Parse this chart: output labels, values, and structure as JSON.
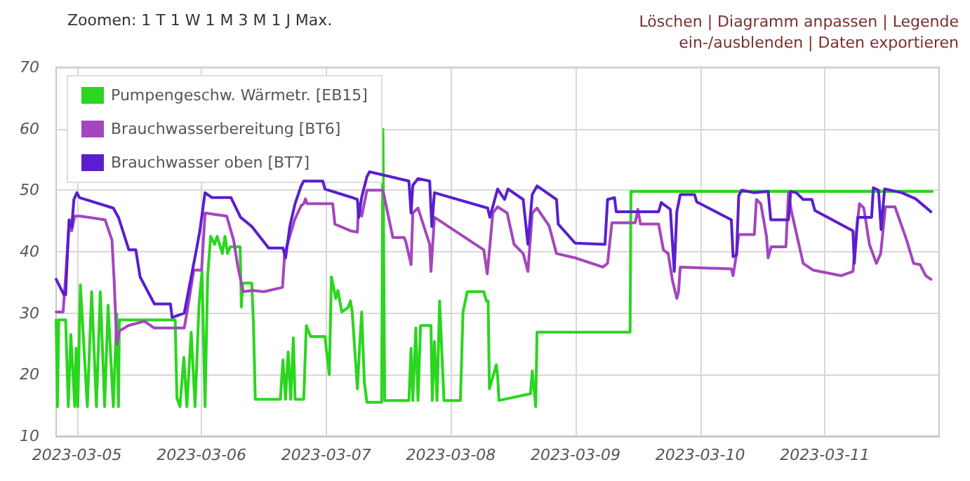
{
  "chart_data": {
    "type": "line",
    "annotations": [
      "Zoomen: 1 T 1 W 1 M 3 M 1 J Max.",
      "Löschen | Diagramm anpassen | Legende ein-/ausblenden | Daten exportieren"
    ],
    "xlim": [
      "2023-03-04T20:00",
      "2023-03-11T22:00"
    ],
    "xticks": [
      "2023-03-05",
      "2023-03-06",
      "2023-03-07",
      "2023-03-08",
      "2023-03-09",
      "2023-03-10",
      "2023-03-11"
    ],
    "ylim": [
      10,
      70
    ],
    "yticks": [
      10,
      20,
      30,
      40,
      50,
      60,
      70
    ],
    "grid": true,
    "legend": "top left",
    "line_style": "solid",
    "series": [
      {
        "name": "Pumpengeschw. Wärmetr. [EB15]",
        "color": "#2ad61e",
        "x": [
          "2023-03-04T20:00",
          "2023-03-04T20:15",
          "2023-03-04T20:30",
          "2023-03-04T21:50",
          "2023-03-04T22:20",
          "2023-03-04T22:50",
          "2023-03-04T23:35",
          "2023-03-04T23:50",
          "2023-03-05T00:10",
          "2023-03-05T00:40",
          "2023-03-05T02:00",
          "2023-03-05T02:50",
          "2023-03-05T03:45",
          "2023-03-05T04:30",
          "2023-03-05T05:20",
          "2023-03-05T06:00",
          "2023-03-05T07:00",
          "2023-03-05T07:40",
          "2023-03-05T08:00",
          "2023-03-05T08:10",
          "2023-03-05T18:55",
          "2023-03-05T19:15",
          "2023-03-05T19:50",
          "2023-03-05T20:35",
          "2023-03-05T21:10",
          "2023-03-05T22:00",
          "2023-03-05T22:45",
          "2023-03-05T23:30",
          "2023-03-06T00:05",
          "2023-03-06T00:40",
          "2023-03-06T01:10",
          "2023-03-06T01:45",
          "2023-03-06T02:30",
          "2023-03-06T03:00",
          "2023-03-06T04:00",
          "2023-03-06T04:30",
          "2023-03-06T05:00",
          "2023-03-06T05:30",
          "2023-03-06T07:25",
          "2023-03-06T07:40",
          "2023-03-06T07:55",
          "2023-03-06T09:40",
          "2023-03-06T10:00",
          "2023-03-06T10:20",
          "2023-03-06T15:10",
          "2023-03-06T15:40",
          "2023-03-06T16:10",
          "2023-03-06T16:40",
          "2023-03-06T17:10",
          "2023-03-06T17:40",
          "2023-03-06T18:00",
          "2023-03-06T19:40",
          "2023-03-06T20:10",
          "2023-03-06T21:00",
          "2023-03-06T23:45",
          "2023-03-07T00:35",
          "2023-03-07T01:00",
          "2023-03-07T01:50",
          "2023-03-07T02:15",
          "2023-03-07T03:00",
          "2023-03-07T04:10",
          "2023-03-07T04:40",
          "2023-03-07T05:00",
          "2023-03-07T06:00",
          "2023-03-07T06:25",
          "2023-03-07T06:50",
          "2023-03-07T07:20",
          "2023-03-07T07:50",
          "2023-03-07T10:40",
          "2023-03-07T10:55",
          "2023-03-07T11:15",
          "2023-03-07T15:55",
          "2023-03-07T16:20",
          "2023-03-07T16:40",
          "2023-03-07T17:15",
          "2023-03-07T17:40",
          "2023-03-07T18:10",
          "2023-03-07T20:10",
          "2023-03-07T20:25",
          "2023-03-07T20:50",
          "2023-03-07T21:20",
          "2023-03-07T21:50",
          "2023-03-07T22:40",
          "2023-03-08T01:50",
          "2023-03-08T02:20",
          "2023-03-08T03:10",
          "2023-03-08T06:20",
          "2023-03-08T06:50",
          "2023-03-08T07:10",
          "2023-03-08T07:25",
          "2023-03-08T08:45",
          "2023-03-08T09:00",
          "2023-03-08T09:15",
          "2023-03-08T15:20",
          "2023-03-08T15:40",
          "2023-03-08T16:20",
          "2023-03-08T16:35",
          "2023-03-09T10:30",
          "2023-03-09T10:40",
          "2023-03-11T20:40"
        ],
        "values": [
          28.9,
          14.8,
          28.9,
          28.9,
          14.8,
          26.5,
          14.8,
          24.3,
          14.8,
          34.6,
          14.8,
          33.5,
          14.8,
          33.5,
          14.8,
          31.3,
          14.8,
          29.9,
          14.8,
          28.9,
          28.9,
          16.2,
          14.8,
          22.8,
          14.8,
          26.9,
          14.8,
          31.3,
          36.8,
          14.8,
          36,
          42.5,
          41.2,
          42.5,
          39.7,
          42.5,
          39.7,
          40.8,
          40.8,
          31,
          34.9,
          34.9,
          28,
          16,
          16,
          22.4,
          16,
          23.7,
          16,
          26,
          16,
          16,
          28,
          26.2,
          26.2,
          20,
          35.9,
          32.4,
          33.7,
          30.2,
          30.9,
          32,
          30.2,
          17.7,
          24.3,
          30.2,
          18.8,
          15.5,
          15.5,
          59.9,
          15.8,
          15.8,
          24.3,
          15.8,
          27.6,
          15.8,
          28,
          28,
          15.8,
          25.4,
          15.8,
          32,
          15.8,
          15.8,
          30.2,
          33.5,
          33.5,
          32,
          32,
          17.7,
          21.6,
          19.8,
          15.8,
          16.9,
          20.6,
          14.8,
          26.9,
          26.9,
          49.8,
          49.8
        ]
      },
      {
        "name": "Brauchwasserbereitung [BT6]",
        "color": "#a446bd",
        "x": [
          "2023-03-04T20:00",
          "2023-03-04T21:20",
          "2023-03-04T21:50",
          "2023-03-04T22:30",
          "2023-03-04T23:00",
          "2023-03-04T23:35",
          "2023-03-05T00:40",
          "2023-03-05T05:25",
          "2023-03-05T06:45",
          "2023-03-05T07:10",
          "2023-03-05T07:40",
          "2023-03-05T08:10",
          "2023-03-05T09:55",
          "2023-03-05T13:00",
          "2023-03-05T14:50",
          "2023-03-05T20:40",
          "2023-03-05T21:10",
          "2023-03-05T22:30",
          "2023-03-06T00:00",
          "2023-03-06T00:40",
          "2023-03-06T04:50",
          "2023-03-06T06:10",
          "2023-03-06T07:00",
          "2023-03-06T08:00",
          "2023-03-06T09:50",
          "2023-03-06T12:00",
          "2023-03-06T15:35",
          "2023-03-06T16:00",
          "2023-03-06T17:55",
          "2023-03-06T19:10",
          "2023-03-06T19:40",
          "2023-03-06T20:00",
          "2023-03-06T20:20",
          "2023-03-07T01:15",
          "2023-03-07T01:40",
          "2023-03-07T04:40",
          "2023-03-07T06:00",
          "2023-03-07T06:15",
          "2023-03-07T06:50",
          "2023-03-07T07:50",
          "2023-03-07T10:55",
          "2023-03-07T12:50",
          "2023-03-07T15:00",
          "2023-03-07T15:20",
          "2023-03-07T16:20",
          "2023-03-07T16:40",
          "2023-03-07T17:40",
          "2023-03-07T19:55",
          "2023-03-07T20:10",
          "2023-03-07T20:50",
          "2023-03-08T06:20",
          "2023-03-08T07:00",
          "2023-03-08T08:05",
          "2023-03-08T09:00",
          "2023-03-08T10:50",
          "2023-03-08T12:10",
          "2023-03-08T13:55",
          "2023-03-08T14:50",
          "2023-03-08T15:40",
          "2023-03-08T16:35",
          "2023-03-08T18:55",
          "2023-03-08T20:20",
          "2023-03-08T23:55",
          "2023-03-09T05:15",
          "2023-03-09T06:10",
          "2023-03-09T07:00",
          "2023-03-09T11:30",
          "2023-03-09T12:00",
          "2023-03-09T12:30",
          "2023-03-09T16:00",
          "2023-03-09T16:55",
          "2023-03-09T17:50",
          "2023-03-09T18:40",
          "2023-03-09T19:30",
          "2023-03-09T19:50",
          "2023-03-09T20:10",
          "2023-03-10T06:00",
          "2023-03-10T06:20",
          "2023-03-10T07:00",
          "2023-03-10T07:25",
          "2023-03-10T10:25",
          "2023-03-10T10:50",
          "2023-03-10T11:40",
          "2023-03-10T12:45",
          "2023-03-10T13:05",
          "2023-03-10T13:40",
          "2023-03-10T16:30",
          "2023-03-10T17:00",
          "2023-03-10T17:35",
          "2023-03-10T19:50",
          "2023-03-10T21:45",
          "2023-03-11T03:10",
          "2023-03-11T05:25",
          "2023-03-11T06:00",
          "2023-03-11T06:40",
          "2023-03-11T07:30",
          "2023-03-11T08:35",
          "2023-03-11T09:55",
          "2023-03-11T10:45",
          "2023-03-11T11:40",
          "2023-03-11T13:30",
          "2023-03-11T15:45",
          "2023-03-11T17:05",
          "2023-03-11T18:20",
          "2023-03-11T19:25",
          "2023-03-11T20:25"
        ],
        "values": [
          30.2,
          30.2,
          35.9,
          45,
          43.4,
          45.8,
          45.8,
          45.2,
          41.9,
          35.3,
          25,
          27.1,
          28,
          28.7,
          27.6,
          27.6,
          30,
          37,
          37,
          46.3,
          45.8,
          41.9,
          37.5,
          33.5,
          33.7,
          33.5,
          34.2,
          39.7,
          45.2,
          47.5,
          47.8,
          48.6,
          47.8,
          47.8,
          44.5,
          43.4,
          43.2,
          47.8,
          45.8,
          50,
          50,
          42.3,
          42.3,
          41.6,
          37.9,
          46.3,
          47.1,
          41.2,
          36.8,
          45.6,
          40.3,
          36.4,
          46.3,
          47.3,
          46.3,
          41.2,
          39.7,
          36.8,
          46.3,
          47.1,
          44.2,
          39.7,
          39,
          37.5,
          38.1,
          44.7,
          44.7,
          46.9,
          44.5,
          44.5,
          40.3,
          39.7,
          35.3,
          32.4,
          33.5,
          37.5,
          37.2,
          36.1,
          39.7,
          42.8,
          42.8,
          48.5,
          47.8,
          42.6,
          39,
          40.8,
          40.8,
          49.6,
          46.5,
          38.1,
          37,
          36.1,
          36.8,
          42.6,
          47.8,
          47.1,
          41.2,
          38.1,
          39.7,
          47.3,
          47.3,
          41.9,
          38.1,
          37.9,
          36.1,
          35.5
        ]
      },
      {
        "name": "Brauchwasser oben [BT7]",
        "color": "#5a1ecf",
        "x": [
          "2023-03-04T20:00",
          "2023-03-04T21:30",
          "2023-03-04T21:50",
          "2023-03-04T22:00",
          "2023-03-04T22:30",
          "2023-03-04T23:00",
          "2023-03-04T23:25",
          "2023-03-05T00:00",
          "2023-03-05T00:30",
          "2023-03-05T07:00",
          "2023-03-05T08:00",
          "2023-03-05T10:00",
          "2023-03-05T11:20",
          "2023-03-05T12:10",
          "2023-03-05T14:55",
          "2023-03-05T18:00",
          "2023-03-05T18:20",
          "2023-03-05T20:40",
          "2023-03-05T22:00",
          "2023-03-05T23:00",
          "2023-03-05T23:40",
          "2023-03-06T00:40",
          "2023-03-06T02:00",
          "2023-03-06T05:40",
          "2023-03-06T07:30",
          "2023-03-06T09:40",
          "2023-03-06T12:55",
          "2023-03-06T15:40",
          "2023-03-06T16:10",
          "2023-03-06T17:00",
          "2023-03-06T18:00",
          "2023-03-06T19:10",
          "2023-03-06T19:40",
          "2023-03-06T23:20",
          "2023-03-06T23:45",
          "2023-03-07T04:40",
          "2023-03-07T06:00",
          "2023-03-07T06:15",
          "2023-03-07T06:50",
          "2023-03-07T07:50",
          "2023-03-07T08:20",
          "2023-03-07T15:55",
          "2023-03-07T16:20",
          "2023-03-07T16:40",
          "2023-03-07T17:40",
          "2023-03-07T19:55",
          "2023-03-07T20:20",
          "2023-03-07T20:50",
          "2023-03-08T07:05",
          "2023-03-08T07:30",
          "2023-03-08T09:00",
          "2023-03-08T10:20",
          "2023-03-08T11:00",
          "2023-03-08T13:55",
          "2023-03-08T14:50",
          "2023-03-08T15:40",
          "2023-03-08T16:35",
          "2023-03-08T20:20",
          "2023-03-08T20:40",
          "2023-03-08T23:55",
          "2023-03-09T05:40",
          "2023-03-09T06:10",
          "2023-03-09T07:30",
          "2023-03-09T07:50",
          "2023-03-09T16:00",
          "2023-03-09T16:30",
          "2023-03-09T18:15",
          "2023-03-09T19:00",
          "2023-03-09T19:30",
          "2023-03-09T20:10",
          "2023-03-09T22:55",
          "2023-03-09T23:20",
          "2023-03-10T06:00",
          "2023-03-10T06:20",
          "2023-03-10T07:00",
          "2023-03-10T07:25",
          "2023-03-10T08:00",
          "2023-03-10T10:25",
          "2023-03-10T13:05",
          "2023-03-10T13:35",
          "2023-03-10T17:00",
          "2023-03-10T17:25",
          "2023-03-10T18:30",
          "2023-03-10T19:50",
          "2023-03-10T21:30",
          "2023-03-10T22:05",
          "2023-03-11T05:25",
          "2023-03-11T05:40",
          "2023-03-11T06:20",
          "2023-03-11T09:00",
          "2023-03-11T09:20",
          "2023-03-11T10:20",
          "2023-03-11T10:50",
          "2023-03-11T11:30",
          "2023-03-11T14:50",
          "2023-03-11T17:30",
          "2023-03-11T20:25"
        ],
        "values": [
          35.5,
          33,
          33,
          36.5,
          45.2,
          44,
          48.5,
          49.6,
          48.8,
          47.1,
          45.6,
          40.3,
          40.3,
          35.9,
          31.5,
          31.5,
          29.3,
          30,
          35.9,
          40.3,
          43.4,
          49.6,
          48.8,
          48.8,
          45.6,
          44.1,
          40.6,
          40.6,
          39,
          44.2,
          47.8,
          50.7,
          51.5,
          51.5,
          50.2,
          48.9,
          48.5,
          45.6,
          48.9,
          52.2,
          53,
          51.5,
          46.3,
          50.8,
          51.9,
          51.5,
          44.1,
          49.6,
          47.1,
          45.6,
          50.2,
          48.5,
          50.2,
          48.5,
          41.2,
          49.3,
          50.7,
          48.5,
          44.5,
          41.4,
          41.2,
          48.5,
          48.8,
          46.5,
          46.5,
          48,
          46.9,
          36.8,
          46.5,
          49.3,
          49.3,
          48.1,
          45.2,
          39.2,
          39.5,
          49.1,
          50,
          49.6,
          49.8,
          45.2,
          45.2,
          49.8,
          49.6,
          48.5,
          48.5,
          46.7,
          43.4,
          38.1,
          45.6,
          45.6,
          50.4,
          50,
          43.6,
          50.2,
          49.6,
          48.6,
          46.5
        ]
      }
    ]
  }
}
